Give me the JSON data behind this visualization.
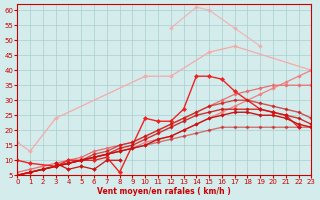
{
  "xlabel": "Vent moyen/en rafales ( km/h )",
  "bg_color": "#d4ecec",
  "grid_color": "#aacece",
  "x_values": [
    0,
    1,
    2,
    3,
    4,
    5,
    6,
    7,
    8,
    9,
    10,
    11,
    12,
    13,
    14,
    15,
    16,
    17,
    18,
    19,
    20,
    21,
    22,
    23
  ],
  "series": [
    {
      "color": "#f4aaaa",
      "alpha": 1.0,
      "linewidth": 0.9,
      "marker": "D",
      "markersize": 2.0,
      "y": [
        16,
        13,
        null,
        24,
        null,
        null,
        null,
        null,
        null,
        null,
        38,
        null,
        38,
        null,
        null,
        46,
        null,
        48,
        null,
        null,
        null,
        null,
        null,
        40
      ]
    },
    {
      "color": "#f4aaaa",
      "alpha": 0.8,
      "linewidth": 0.9,
      "marker": "D",
      "markersize": 2.0,
      "y": [
        null,
        null,
        null,
        null,
        null,
        null,
        null,
        null,
        null,
        null,
        null,
        null,
        54,
        null,
        61,
        60,
        null,
        54,
        null,
        48,
        null,
        null,
        null,
        null
      ]
    },
    {
      "color": "#f08080",
      "alpha": 1.0,
      "linewidth": 0.9,
      "marker": "D",
      "markersize": 1.8,
      "y": [
        5,
        6,
        7,
        8,
        9,
        10,
        11,
        12,
        13,
        14,
        16,
        17,
        18,
        20,
        22,
        24,
        26,
        28,
        30,
        32,
        34,
        36,
        38,
        40
      ]
    },
    {
      "color": "#e87070",
      "alpha": 1.0,
      "linewidth": 0.9,
      "marker": "D",
      "markersize": 1.8,
      "y": [
        6,
        7,
        8,
        9,
        10,
        11,
        13,
        14,
        15,
        16,
        18,
        20,
        22,
        24,
        26,
        28,
        30,
        32,
        33,
        34,
        35,
        35,
        35,
        35
      ]
    },
    {
      "color": "#ee2222",
      "alpha": 1.0,
      "linewidth": 1.0,
      "marker": "D",
      "markersize": 2.2,
      "y": [
        10,
        9,
        null,
        8,
        10,
        10,
        10,
        11,
        6,
        null,
        24,
        23,
        23,
        27,
        38,
        38,
        37,
        33,
        null,
        27,
        26,
        25,
        21,
        null
      ]
    },
    {
      "color": "#cc1111",
      "alpha": 1.0,
      "linewidth": 0.9,
      "marker": "D",
      "markersize": 2.0,
      "y": [
        null,
        null,
        null,
        9,
        7,
        8,
        7,
        10,
        10,
        null,
        null,
        null,
        null,
        null,
        null,
        null,
        null,
        null,
        null,
        null,
        null,
        null,
        null,
        null
      ]
    },
    {
      "color": "#cc1111",
      "alpha": 1.0,
      "linewidth": 1.0,
      "marker": "D",
      "markersize": 1.8,
      "y": [
        5,
        6,
        7,
        8,
        9,
        10,
        11,
        12,
        13,
        14,
        15,
        17,
        18,
        20,
        22,
        24,
        25,
        26,
        26,
        25,
        25,
        24,
        22,
        21
      ]
    },
    {
      "color": "#cc1111",
      "alpha": 0.85,
      "linewidth": 1.0,
      "marker": "D",
      "markersize": 1.8,
      "y": [
        5,
        6,
        7,
        8,
        9,
        10,
        11,
        12,
        14,
        15,
        17,
        19,
        21,
        23,
        25,
        26,
        27,
        27,
        27,
        27,
        26,
        25,
        24,
        22
      ]
    },
    {
      "color": "#cc1111",
      "alpha": 0.7,
      "linewidth": 1.0,
      "marker": "D",
      "markersize": 1.8,
      "y": [
        5,
        6,
        7,
        8,
        9,
        10,
        12,
        13,
        15,
        16,
        18,
        20,
        22,
        24,
        26,
        28,
        29,
        30,
        30,
        29,
        28,
        27,
        26,
        24
      ]
    },
    {
      "color": "#cc1111",
      "alpha": 0.55,
      "linewidth": 1.0,
      "marker": "D",
      "markersize": 1.8,
      "y": [
        5,
        6,
        7,
        8,
        9,
        10,
        11,
        12,
        13,
        14,
        15,
        16,
        17,
        18,
        19,
        20,
        21,
        21,
        21,
        21,
        21,
        21,
        21,
        21
      ]
    }
  ],
  "xlim": [
    0,
    23
  ],
  "ylim": [
    5,
    62
  ],
  "yticks": [
    5,
    10,
    15,
    20,
    25,
    30,
    35,
    40,
    45,
    50,
    55,
    60
  ],
  "xticks": [
    0,
    1,
    2,
    3,
    4,
    5,
    6,
    7,
    8,
    9,
    10,
    11,
    12,
    13,
    14,
    15,
    16,
    17,
    18,
    19,
    20,
    21,
    22,
    23
  ]
}
